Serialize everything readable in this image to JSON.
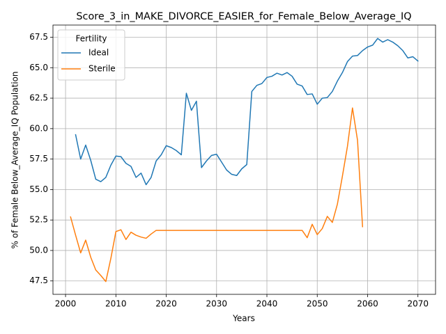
{
  "chart_data": {
    "type": "line",
    "title": "Score_3_in_MAKE_DIVORCE_EASIER_for_Female_Below_Average_IQ",
    "xlabel": "Years",
    "ylabel": "% of Female Below_Average_IQ Population",
    "xlim": [
      1997.5,
      2073.5
    ],
    "ylim": [
      46.4,
      68.5
    ],
    "xticks": [
      2000,
      2010,
      2020,
      2030,
      2040,
      2050,
      2060,
      2070
    ],
    "yticks": [
      47.5,
      50.0,
      52.5,
      55.0,
      57.5,
      60.0,
      62.5,
      65.0,
      67.5
    ],
    "xtick_labels": [
      "2000",
      "2010",
      "2020",
      "2030",
      "2040",
      "2050",
      "2060",
      "2070"
    ],
    "ytick_labels": [
      "47.5",
      "50.0",
      "52.5",
      "55.0",
      "57.5",
      "60.0",
      "62.5",
      "65.0",
      "67.5"
    ],
    "grid": true,
    "legend": {
      "title": "Fertility",
      "position": "top-left"
    },
    "series": [
      {
        "name": "Ideal",
        "color": "#1f77b4",
        "x": [
          2002,
          2003,
          2004,
          2005,
          2006,
          2007,
          2008,
          2009,
          2010,
          2011,
          2012,
          2013,
          2014,
          2015,
          2016,
          2017,
          2018,
          2019,
          2020,
          2021,
          2022,
          2023,
          2024,
          2025,
          2026,
          2027,
          2028,
          2029,
          2030,
          2031,
          2032,
          2033,
          2034,
          2035,
          2036,
          2037,
          2038,
          2039,
          2040,
          2041,
          2042,
          2043,
          2044,
          2045,
          2046,
          2047,
          2048,
          2049,
          2050,
          2051,
          2052,
          2053,
          2054,
          2055,
          2056,
          2057,
          2058,
          2059,
          2060,
          2061,
          2062,
          2063,
          2064,
          2065,
          2066,
          2067,
          2068,
          2069,
          2070
        ],
        "values": [
          59.5,
          57.5,
          58.65,
          57.4,
          55.85,
          55.65,
          56.0,
          57.0,
          57.75,
          57.7,
          57.15,
          56.9,
          56.0,
          56.35,
          55.4,
          56.0,
          57.35,
          57.85,
          58.6,
          58.45,
          58.2,
          57.85,
          62.9,
          61.5,
          62.25,
          56.8,
          57.35,
          57.8,
          57.9,
          57.25,
          56.6,
          56.25,
          56.15,
          56.7,
          57.05,
          63.05,
          63.55,
          63.7,
          64.2,
          64.3,
          64.55,
          64.4,
          64.6,
          64.3,
          63.65,
          63.5,
          62.8,
          62.85,
          62.0,
          62.5,
          62.55,
          63.05,
          63.9,
          64.6,
          65.5,
          65.95,
          66.0,
          66.4,
          66.7,
          66.85,
          67.4,
          67.1,
          67.3,
          67.1,
          66.8,
          66.4,
          65.8,
          65.9,
          65.55
        ]
      },
      {
        "name": "Sterile",
        "color": "#ff7f0e",
        "x": [
          2001,
          2002,
          2003,
          2004,
          2005,
          2006,
          2007,
          2008,
          2009,
          2010,
          2011,
          2012,
          2013,
          2014,
          2015,
          2016,
          2017,
          2018,
          2019,
          2020,
          2021,
          2022,
          2023,
          2024,
          2025,
          2026,
          2027,
          2028,
          2029,
          2030,
          2031,
          2032,
          2033,
          2034,
          2035,
          2036,
          2037,
          2038,
          2039,
          2040,
          2041,
          2042,
          2043,
          2044,
          2045,
          2046,
          2047,
          2048,
          2049,
          2050,
          2051,
          2052,
          2053,
          2054,
          2055,
          2056,
          2057,
          2058,
          2059
        ],
        "values": [
          52.75,
          51.25,
          49.8,
          50.85,
          49.45,
          48.4,
          47.95,
          47.45,
          49.35,
          51.55,
          51.7,
          50.9,
          51.5,
          51.25,
          51.1,
          51.0,
          51.35,
          51.65,
          51.65,
          51.65,
          51.65,
          51.65,
          51.65,
          51.65,
          51.65,
          51.65,
          51.65,
          51.65,
          51.65,
          51.65,
          51.65,
          51.65,
          51.65,
          51.65,
          51.65,
          51.65,
          51.65,
          51.65,
          51.65,
          51.65,
          51.65,
          51.65,
          51.65,
          51.65,
          51.65,
          51.65,
          51.65,
          51.05,
          52.15,
          51.3,
          51.8,
          52.8,
          52.3,
          53.8,
          56.1,
          58.55,
          61.7,
          59.05,
          51.95
        ]
      }
    ]
  }
}
